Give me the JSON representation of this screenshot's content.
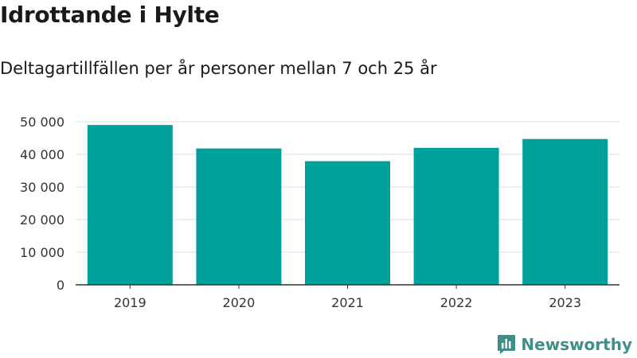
{
  "header": {
    "title": "Idrottande i Hylte",
    "subtitle": "Deltagartillfällen per år personer mellan 7 och 25 år"
  },
  "brand": {
    "name": "Newsworthy",
    "icon": "newsworthy-logo-icon",
    "color": "#3e8f8a"
  },
  "chart_data": {
    "type": "bar",
    "categories": [
      "2019",
      "2020",
      "2021",
      "2022",
      "2023"
    ],
    "values": [
      49000,
      41800,
      37900,
      42000,
      44700
    ],
    "ylim": [
      0,
      50000
    ],
    "yticks": [
      0,
      10000,
      20000,
      30000,
      40000,
      50000
    ],
    "ytick_labels": [
      "0",
      "10 000",
      "20 000",
      "30 000",
      "40 000",
      "50 000"
    ],
    "bar_color": "#00a19a",
    "grid": true,
    "xlabel": "",
    "ylabel": ""
  }
}
